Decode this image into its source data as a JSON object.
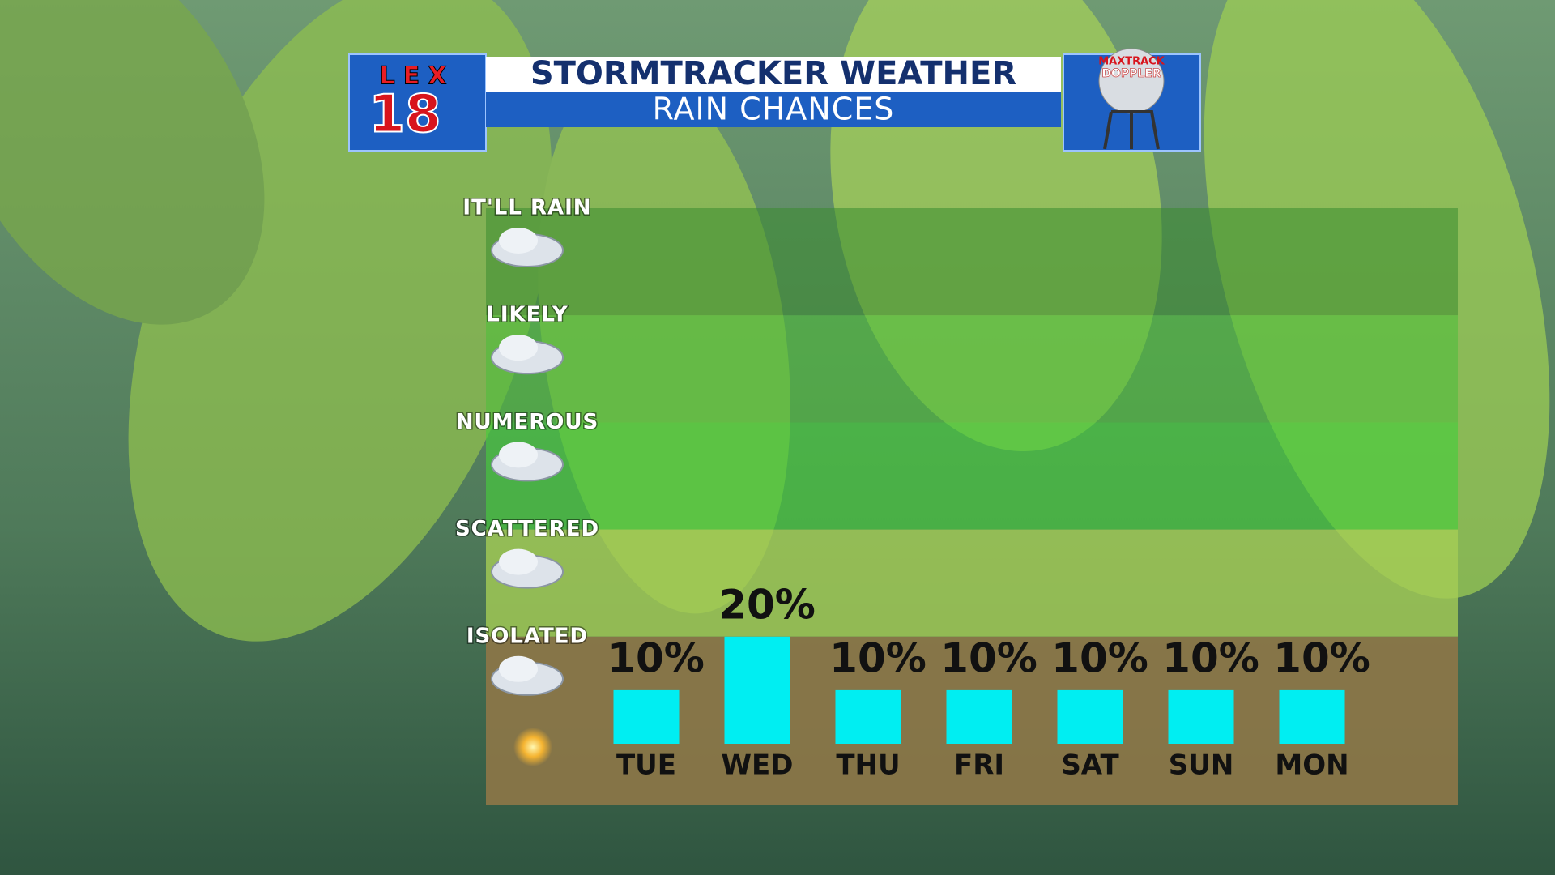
{
  "logo": {
    "station": "LEX",
    "channel": "18"
  },
  "radar_badge": [
    "MAXTRACK",
    "DOPPLER"
  ],
  "chart_data": {
    "type": "bar",
    "title": "STORMTRACKER WEATHER",
    "subtitle": "RAIN CHANCES",
    "categories": [
      "TUE",
      "WED",
      "THU",
      "FRI",
      "SAT",
      "SUN",
      "MON"
    ],
    "values": [
      10,
      20,
      10,
      10,
      10,
      10,
      10
    ],
    "value_labels": [
      "10%",
      "20%",
      "10%",
      "10%",
      "10%",
      "10%",
      "10%"
    ],
    "color": "#00eef2",
    "ylim": [
      0,
      100
    ],
    "yticks": [
      {
        "value": 100,
        "label": "IT'LL RAIN"
      },
      {
        "value": 80,
        "label": "LIKELY"
      },
      {
        "value": 60,
        "label": "NUMEROUS"
      },
      {
        "value": 40,
        "label": "SCATTERED"
      },
      {
        "value": 20,
        "label": "ISOLATED"
      }
    ],
    "band_colors": [
      "rgba(58,140,48,0.55)",
      "rgba(80,190,60,0.6)",
      "rgba(70,205,60,0.65)",
      "rgba(165,205,85,0.8)",
      "rgba(140,118,72,0.92)"
    ]
  }
}
